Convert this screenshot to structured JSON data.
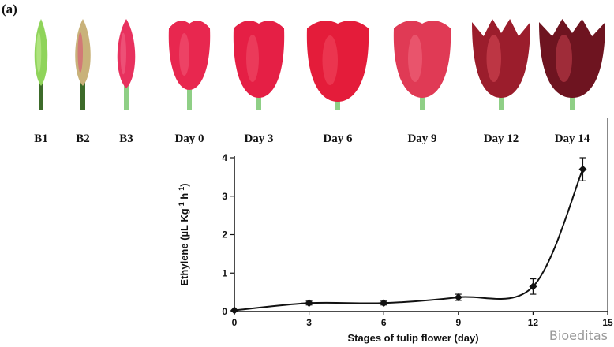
{
  "panel_label": "(a)",
  "stages": [
    {
      "id": "B1",
      "color": "#8fd45a",
      "tip": "#c8ef9a",
      "open": 0
    },
    {
      "id": "B2",
      "color": "#c9b27a",
      "tip": "#d84a72",
      "open": 0
    },
    {
      "id": "B3",
      "color": "#e8315e",
      "tip": "#f06a8a",
      "open": 0
    },
    {
      "id": "Day 0",
      "color": "#e8274f",
      "tip": "#f05a78",
      "open": 1
    },
    {
      "id": "Day 3",
      "color": "#e51f45",
      "tip": "#f0506c",
      "open": 2
    },
    {
      "id": "Day 6",
      "color": "#e41c3a",
      "tip": "#f04a60",
      "open": 3
    },
    {
      "id": "Day 9",
      "color": "#e03a55",
      "tip": "#f06a80",
      "open": 3
    },
    {
      "id": "Day 12",
      "color": "#9b1d2c",
      "tip": "#d94a5a",
      "open": 4
    },
    {
      "id": "Day 14",
      "color": "#6e1420",
      "tip": "#c9404e",
      "open": 5
    }
  ],
  "watermark": "Bioeditas",
  "chart_data": {
    "type": "line",
    "xlabel": "Stages of tulip flower (day)",
    "ylabel_main": "Ethylene (µL Kg",
    "ylabel_sup1": "-1",
    "ylabel_mid": " h",
    "ylabel_sup2": "-1",
    "ylabel_end": ")",
    "xlim": [
      0,
      15
    ],
    "ylim": [
      0,
      4
    ],
    "xticks": [
      "0",
      "3",
      "6",
      "9",
      "12",
      "15"
    ],
    "yticks": [
      "0",
      "1",
      "2",
      "3",
      "4"
    ],
    "series": [
      {
        "name": "Ethylene",
        "x": [
          0,
          3,
          6,
          9,
          12,
          14
        ],
        "y": [
          0.03,
          0.22,
          0.22,
          0.37,
          0.65,
          3.7
        ],
        "err": [
          0.0,
          0.05,
          0.05,
          0.08,
          0.2,
          0.3
        ]
      }
    ],
    "colors": {
      "line": "#111111",
      "marker": "#111111"
    }
  }
}
